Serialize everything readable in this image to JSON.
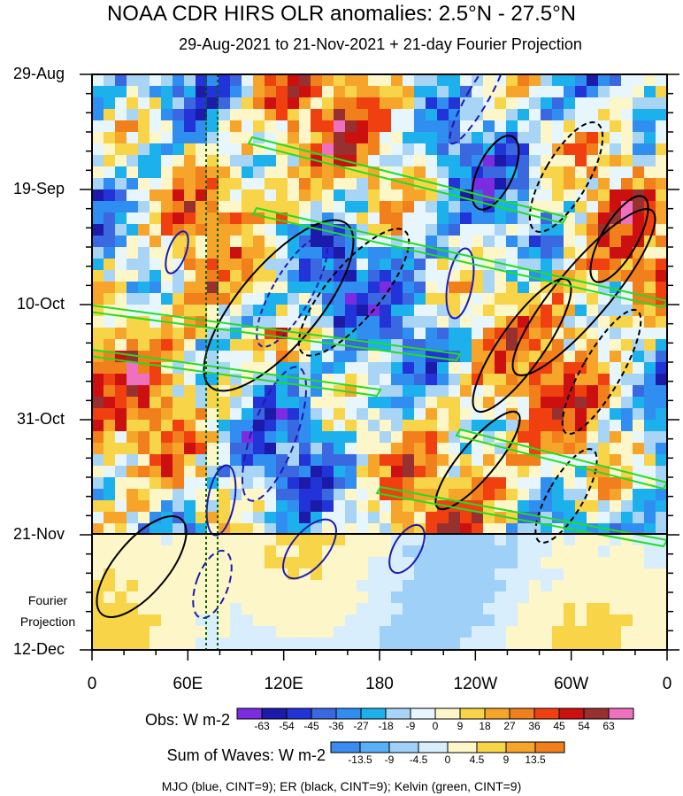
{
  "title": "NOAA CDR HIRS OLR anomalies: 2.5°N - 27.5°N",
  "subtitle": "29-Aug-2021 to 21-Nov-2021 + 21-day Fourier Projection",
  "chart_data": {
    "type": "heatmap",
    "x_ticks": [
      "0",
      "60E",
      "120E",
      "180",
      "120W",
      "60W",
      "0"
    ],
    "y_ticks": [
      "29-Aug",
      "19-Sep",
      "10-Oct",
      "31-Oct",
      "21-Nov",
      "12-Dec"
    ],
    "projection_label_line1": "Fourier",
    "projection_label_line2": "Projection",
    "obs_colorbar": {
      "label": "Obs: W m-2",
      "ticks": [
        "-63",
        "-54",
        "-45",
        "-36",
        "-27",
        "-18",
        "-9",
        "0",
        "9",
        "18",
        "27",
        "36",
        "45",
        "54",
        "63"
      ],
      "colors": [
        "#7b2be0",
        "#1c1aa8",
        "#2233d8",
        "#3a68e0",
        "#2f8ef0",
        "#1cb0ec",
        "#a8d4f6",
        "#e6f6fc",
        "#fdf6c8",
        "#f8d448",
        "#f6a52a",
        "#f07f1c",
        "#f04010",
        "#cc1010",
        "#993030",
        "#f070c0"
      ]
    },
    "wave_colorbar": {
      "label": "Sum of Waves: W m-2",
      "ticks": [
        "-13.5",
        "-9",
        "-4.5",
        "0",
        "4.5",
        "9",
        "13.5"
      ],
      "colors": [
        "#3a8cf0",
        "#5ab0f6",
        "#9fd0f8",
        "#d8eefc",
        "#fdf6c8",
        "#f8d448",
        "#f6a52a",
        "#f07f1c"
      ]
    },
    "legend_text": "MJO (blue, CINT=9); ER (black, CINT=9); Kelvin (green, CINT=9)",
    "mjo_color": "#1c1ab0",
    "er_color": "#000000",
    "kelvin_color": "#22dd22"
  }
}
